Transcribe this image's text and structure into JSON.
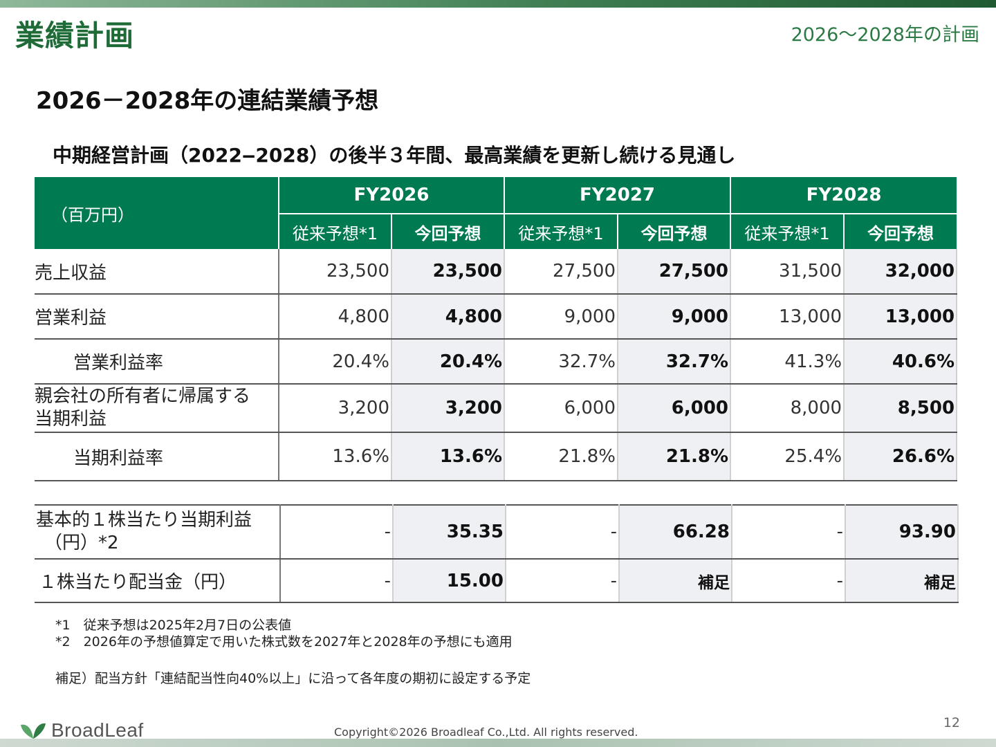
{
  "header": {
    "title": "業績計画",
    "subtitle": "2026～2028年の計画"
  },
  "section_title": "2026－2028年の連結業績予想",
  "headline": "中期経営計画（2022‒2028）の後半３年間、最高業績を更新し続ける見通し",
  "table": {
    "unit": "（百万円）",
    "years": [
      "FY2026",
      "FY2027",
      "FY2028"
    ],
    "sub_prev": "従来予想*1",
    "sub_curr": "今回予想",
    "rows": [
      {
        "label": "売上収益",
        "values": [
          "23,500",
          "23,500",
          "27,500",
          "27,500",
          "31,500",
          "32,000"
        ]
      },
      {
        "label": "営業利益",
        "values": [
          "4,800",
          "4,800",
          "9,000",
          "9,000",
          "13,000",
          "13,000"
        ]
      },
      {
        "label": "営業利益率",
        "values": [
          "20.4%",
          "20.4%",
          "32.7%",
          "32.7%",
          "41.3%",
          "40.6%"
        ]
      },
      {
        "label_line1": "親会社の所有者に帰属する",
        "label_line2": "当期利益",
        "values": [
          "3,200",
          "3,200",
          "6,000",
          "6,000",
          "8,000",
          "8,500"
        ]
      },
      {
        "label": "当期利益率",
        "values": [
          "13.6%",
          "13.6%",
          "21.8%",
          "21.8%",
          "25.4%",
          "26.6%"
        ]
      }
    ]
  },
  "eps_table": {
    "rows": [
      {
        "label_line1": "基本的１株当たり当期利益",
        "label_line2": "（円）*2",
        "values": [
          "-",
          "35.35",
          "-",
          "66.28",
          "-",
          "93.90"
        ]
      },
      {
        "label": "１株当たり配当金（円）",
        "values": [
          "-",
          "15.00",
          "-",
          "補足",
          "-",
          "補足"
        ]
      }
    ]
  },
  "footnotes": {
    "note1": "*1　従来予想は2025年2月7日の公表値",
    "note2": "*2　2026年の予想値算定で用いた株式数を2027年と2028年の予想にも適用",
    "supplement": "補足）配当方針「連結配当性向40%以上」に沿って各年度の期初に設定する予定"
  },
  "footer": {
    "logo_text": "BroadLeaf",
    "copyright": "Copyright©2026 Broadleaf Co.,Ltd. All rights reserved.",
    "page_number": "12"
  },
  "colors": {
    "brand_green": "#007a50",
    "title_green": "#1e6b37",
    "current_forecast_bg": "#eef0f3"
  },
  "icons": {
    "logo": "broadleaf-leaf-icon"
  }
}
